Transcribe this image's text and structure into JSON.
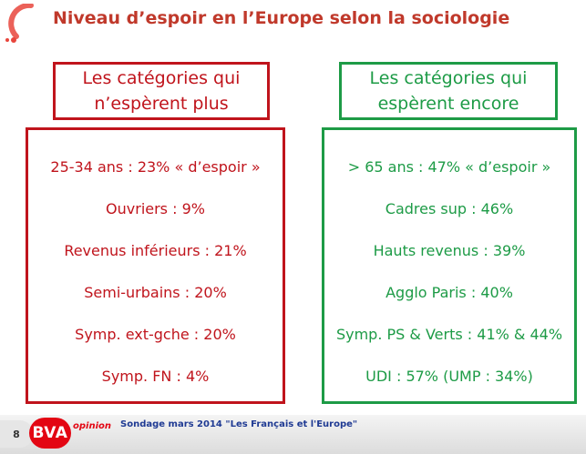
{
  "slide": {
    "title": "Niveau d’espoir en l’Europe selon la sociologie",
    "page_number": "8",
    "accent_color": "#c0141c",
    "positive_color": "#1d9b46"
  },
  "left_panel": {
    "header_line1": "Les catégories qui",
    "header_line2": "n’espèrent plus",
    "items": [
      "25-34 ans : 23% « d’espoir »",
      "Ouvriers : 9%",
      "Revenus inférieurs : 21%",
      "Semi-urbains : 20%",
      "Symp. ext-gche : 20%",
      "Symp. FN : 4%"
    ]
  },
  "right_panel": {
    "header_line1": "Les catégories qui",
    "header_line2": "espèrent encore",
    "items": [
      "> 65 ans : 47% « d’espoir »",
      "Cadres sup : 46%",
      "Hauts revenus : 39%",
      "Agglo Paris : 40%",
      "Symp. PS & Verts : 41% & 44%",
      "UDI : 57% (UMP : 34%)"
    ]
  },
  "footer": {
    "brand": "BVA",
    "brand_tagline": "opinion",
    "source": "Sondage mars 2014 \"Les Français et l'Europe\""
  }
}
